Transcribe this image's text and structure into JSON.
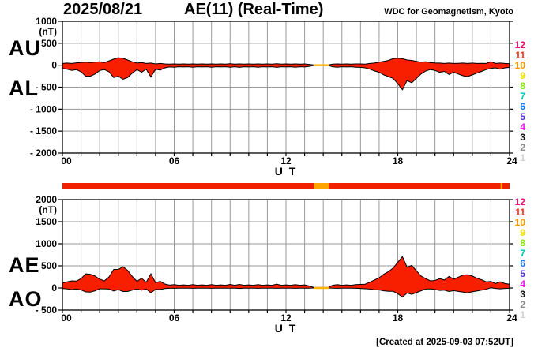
{
  "header": {
    "date": "2025/08/21",
    "title": "AE(11) (Real-Time)",
    "source": "WDC for Geomagnetism, Kyoto"
  },
  "footer": {
    "created": "[Created at 2025-09-03 07:52UT]"
  },
  "color_scale": {
    "levels": [
      {
        "label": "12",
        "color": "#E81478"
      },
      {
        "label": "11",
        "color": "#FF3214"
      },
      {
        "label": "10",
        "color": "#FF9600"
      },
      {
        "label": "9",
        "color": "#F0E000"
      },
      {
        "label": "8",
        "color": "#8CE614"
      },
      {
        "label": "7",
        "color": "#00C8B4"
      },
      {
        "label": "6",
        "color": "#1478F0"
      },
      {
        "label": "5",
        "color": "#5A3CC8"
      },
      {
        "label": "4",
        "color": "#E614E6"
      },
      {
        "label": "3",
        "color": "#141414"
      },
      {
        "label": "2",
        "color": "#8C8C8C"
      },
      {
        "label": "1",
        "color": "#D2D2D2"
      }
    ]
  },
  "panels": {
    "top": {
      "name": "au-al",
      "left_labels": [
        "AU",
        "AL"
      ],
      "unit": "(nT)",
      "yticks": [
        {
          "label": "1000",
          "value": 1000
        },
        {
          "label": "500",
          "value": 500
        },
        {
          "label": "0",
          "value": 0
        },
        {
          "label": "- 500",
          "value": -500
        },
        {
          "label": "- 1000",
          "value": -1000
        },
        {
          "label": "- 1500",
          "value": -1500
        },
        {
          "label": "- 2000",
          "value": -2000
        }
      ],
      "xticks": [
        {
          "label": "00",
          "hour": 0
        },
        {
          "label": "06",
          "hour": 6
        },
        {
          "label": "12",
          "hour": 12
        },
        {
          "label": "18",
          "hour": 18
        },
        {
          "label": "24",
          "hour": 24
        }
      ],
      "xlabel": "U T"
    },
    "bottom": {
      "name": "ae-ao",
      "left_labels": [
        "AE",
        "AO"
      ],
      "unit": "(nT)",
      "yticks": [
        {
          "label": "2000",
          "value": 2000
        },
        {
          "label": "1500",
          "value": 1500
        },
        {
          "label": "1000",
          "value": 1000
        },
        {
          "label": "500",
          "value": 500
        },
        {
          "label": "0",
          "value": 0
        },
        {
          "label": "- 500",
          "value": -500
        }
      ],
      "xticks": [
        {
          "label": "00",
          "hour": 0
        },
        {
          "label": "06",
          "hour": 6
        },
        {
          "label": "12",
          "hour": 12
        },
        {
          "label": "18",
          "hour": 18
        },
        {
          "label": "24",
          "hour": 24
        }
      ],
      "xlabel": "U T"
    }
  },
  "activity_bar": {
    "base_color": "#F02000",
    "time_span_hours": [
      0,
      24
    ],
    "segments": [
      {
        "start": 13.5,
        "end": 14.3,
        "color": "#FFA500"
      },
      {
        "start": 23.52,
        "end": 23.62,
        "color": "#FFA500"
      }
    ]
  },
  "chart_data": [
    {
      "type": "area",
      "panel": "top",
      "title": "AU and AL auroral electrojet indices, filled between curves",
      "xlabel": "U T",
      "ylabel": "(nT)",
      "x_start": 0,
      "x_step_hours": 0.25,
      "x_end": 24,
      "ylim": [
        -2000,
        1000
      ],
      "grid": true,
      "fill_color": "#F81E00",
      "data_gap": {
        "start": 13.5,
        "end": 14.3,
        "color": "#FFB400"
      },
      "series": [
        {
          "name": "AU",
          "values": [
            40,
            50,
            40,
            55,
            60,
            70,
            60,
            70,
            80,
            60,
            100,
            140,
            170,
            160,
            120,
            80,
            50,
            60,
            40,
            50,
            30,
            40,
            30,
            25,
            30,
            25,
            30,
            25,
            30,
            25,
            30,
            25,
            30,
            25,
            30,
            25,
            35,
            25,
            30,
            25,
            30,
            25,
            30,
            25,
            30,
            25,
            35,
            25,
            30,
            25,
            30,
            25,
            30,
            20,
            5,
            5,
            5,
            5,
            25,
            30,
            25,
            30,
            25,
            30,
            30,
            25,
            40,
            50,
            70,
            90,
            110,
            150,
            160,
            150,
            120,
            110,
            90,
            70,
            80,
            60,
            50,
            50,
            40,
            50,
            40,
            45,
            50,
            40,
            50,
            40,
            45,
            40,
            80,
            40,
            50,
            40,
            35
          ]
        },
        {
          "name": "AL",
          "values": [
            -70,
            -90,
            -120,
            -100,
            -150,
            -250,
            -250,
            -200,
            -120,
            -100,
            -150,
            -280,
            -250,
            -320,
            -280,
            -180,
            -100,
            -160,
            -90,
            -270,
            -90,
            -110,
            -60,
            -40,
            -45,
            -35,
            -40,
            -35,
            -45,
            -35,
            -40,
            -35,
            -45,
            -35,
            -40,
            -35,
            -45,
            -35,
            -50,
            -35,
            -40,
            -35,
            -45,
            -35,
            -40,
            -35,
            -50,
            -35,
            -40,
            -35,
            -45,
            -35,
            -40,
            -25,
            -5,
            -5,
            -5,
            -5,
            -35,
            -45,
            -35,
            -40,
            -35,
            -45,
            -50,
            -60,
            -90,
            -130,
            -160,
            -220,
            -260,
            -300,
            -420,
            -560,
            -350,
            -400,
            -300,
            -200,
            -130,
            -100,
            -120,
            -160,
            -140,
            -210,
            -160,
            -200,
            -240,
            -260,
            -220,
            -180,
            -140,
            -100,
            -70,
            -60,
            -90,
            -60,
            -50
          ]
        }
      ]
    },
    {
      "type": "area",
      "panel": "bottom",
      "title": "AE and AO auroral electrojet indices, filled between curves",
      "xlabel": "U T",
      "ylabel": "(nT)",
      "x_start": 0,
      "x_step_hours": 0.25,
      "x_end": 24,
      "ylim": [
        -500,
        2000
      ],
      "grid": true,
      "fill_color": "#F81E00",
      "data_gap": {
        "start": 13.5,
        "end": 14.3,
        "color": "#FFB400"
      },
      "series": [
        {
          "name": "AE",
          "values": [
            110,
            140,
            160,
            155,
            210,
            320,
            310,
            270,
            200,
            160,
            250,
            420,
            420,
            480,
            400,
            260,
            150,
            220,
            130,
            320,
            120,
            150,
            90,
            65,
            75,
            60,
            70,
            60,
            75,
            60,
            70,
            60,
            75,
            60,
            70,
            60,
            80,
            60,
            80,
            60,
            70,
            60,
            75,
            60,
            70,
            60,
            85,
            60,
            70,
            60,
            75,
            60,
            70,
            45,
            10,
            10,
            10,
            10,
            60,
            75,
            60,
            70,
            60,
            75,
            80,
            85,
            130,
            180,
            230,
            310,
            370,
            450,
            580,
            710,
            470,
            510,
            390,
            270,
            210,
            160,
            170,
            210,
            180,
            260,
            200,
            245,
            290,
            300,
            270,
            220,
            185,
            140,
            150,
            100,
            140,
            100,
            85
          ]
        },
        {
          "name": "AO",
          "values": [
            -15,
            -20,
            -40,
            -22,
            -45,
            -90,
            -95,
            -65,
            -20,
            -20,
            -25,
            -70,
            -40,
            -80,
            -80,
            -50,
            -25,
            -50,
            -25,
            -110,
            -30,
            -35,
            -15,
            -8,
            -8,
            -5,
            -5,
            -5,
            -8,
            -5,
            -5,
            -5,
            -8,
            -5,
            -5,
            -5,
            -5,
            -5,
            -10,
            -5,
            -5,
            -5,
            -8,
            -5,
            -5,
            -5,
            -8,
            -5,
            -5,
            -5,
            -8,
            -5,
            -5,
            -3,
            0,
            0,
            0,
            0,
            -5,
            -8,
            -5,
            -5,
            -5,
            -8,
            -10,
            -18,
            -25,
            -40,
            -45,
            -65,
            -75,
            -75,
            -130,
            -205,
            -115,
            -145,
            -105,
            -65,
            -25,
            -20,
            -35,
            -55,
            -50,
            -80,
            -60,
            -78,
            -95,
            -110,
            -85,
            -70,
            -48,
            -30,
            5,
            -10,
            -20,
            -10,
            -8
          ]
        }
      ]
    }
  ]
}
